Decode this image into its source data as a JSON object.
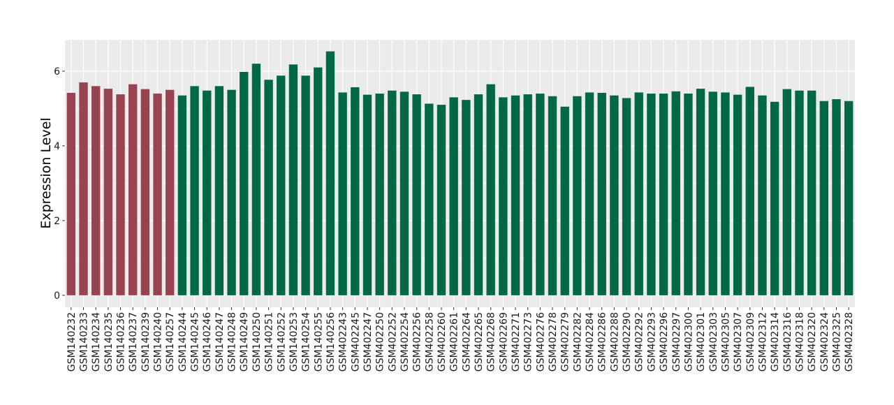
{
  "chart_data": {
    "type": "bar",
    "title": "",
    "xlabel": "",
    "ylabel": "Expression Level",
    "ylim": [
      -0.32,
      6.84
    ],
    "yticks": [
      0,
      2,
      4,
      6
    ],
    "grid": true,
    "legend": "none",
    "colors": {
      "group1": "#9a4350",
      "group2": "#006845",
      "panel": "#ebebeb",
      "grid": "#ffffff"
    },
    "categories": [
      "GSM140232",
      "GSM140233",
      "GSM140234",
      "GSM140235",
      "GSM140236",
      "GSM140237",
      "GSM140239",
      "GSM140240",
      "GSM140257",
      "GSM140244",
      "GSM140245",
      "GSM140246",
      "GSM140247",
      "GSM140248",
      "GSM140249",
      "GSM140250",
      "GSM140251",
      "GSM140252",
      "GSM140253",
      "GSM140254",
      "GSM140255",
      "GSM140256",
      "GSM402243",
      "GSM402245",
      "GSM402247",
      "GSM402250",
      "GSM402252",
      "GSM402254",
      "GSM402256",
      "GSM402258",
      "GSM402260",
      "GSM402261",
      "GSM402264",
      "GSM402265",
      "GSM402268",
      "GSM402269",
      "GSM402271",
      "GSM402273",
      "GSM402276",
      "GSM402278",
      "GSM402279",
      "GSM402282",
      "GSM402284",
      "GSM402286",
      "GSM402288",
      "GSM402290",
      "GSM402292",
      "GSM402293",
      "GSM402296",
      "GSM402297",
      "GSM402300",
      "GSM402301",
      "GSM402303",
      "GSM402305",
      "GSM402307",
      "GSM402309",
      "GSM402312",
      "GSM402314",
      "GSM402316",
      "GSM402318",
      "GSM402320",
      "GSM402324",
      "GSM402325",
      "GSM402328"
    ],
    "values": [
      5.42,
      5.7,
      5.6,
      5.53,
      5.38,
      5.65,
      5.52,
      5.4,
      5.5,
      5.35,
      5.6,
      5.48,
      5.6,
      5.5,
      5.98,
      6.2,
      5.77,
      5.88,
      6.18,
      5.88,
      6.1,
      6.53,
      5.43,
      5.57,
      5.37,
      5.4,
      5.48,
      5.45,
      5.38,
      5.13,
      5.1,
      5.3,
      5.23,
      5.38,
      5.65,
      5.3,
      5.35,
      5.38,
      5.4,
      5.33,
      5.05,
      5.33,
      5.43,
      5.42,
      5.35,
      5.28,
      5.43,
      5.4,
      5.4,
      5.46,
      5.4,
      5.53,
      5.45,
      5.43,
      5.37,
      5.58,
      5.35,
      5.18,
      5.52,
      5.48,
      5.48,
      5.2,
      5.25,
      5.2
    ],
    "groups": [
      1,
      1,
      1,
      1,
      1,
      1,
      1,
      1,
      1,
      2,
      2,
      2,
      2,
      2,
      2,
      2,
      2,
      2,
      2,
      2,
      2,
      2,
      2,
      2,
      2,
      2,
      2,
      2,
      2,
      2,
      2,
      2,
      2,
      2,
      2,
      2,
      2,
      2,
      2,
      2,
      2,
      2,
      2,
      2,
      2,
      2,
      2,
      2,
      2,
      2,
      2,
      2,
      2,
      2,
      2,
      2,
      2,
      2,
      2,
      2,
      2,
      2,
      2,
      2
    ]
  }
}
